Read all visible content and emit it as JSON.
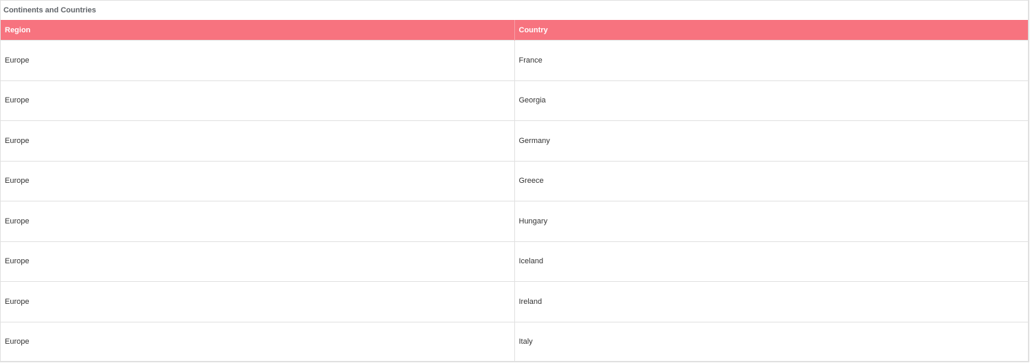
{
  "title": "Continents and Countries",
  "columns": [
    "Region",
    "Country"
  ],
  "rows": [
    [
      "Europe",
      "France"
    ],
    [
      "Europe",
      "Georgia"
    ],
    [
      "Europe",
      "Germany"
    ],
    [
      "Europe",
      "Greece"
    ],
    [
      "Europe",
      "Hungary"
    ],
    [
      "Europe",
      "Iceland"
    ],
    [
      "Europe",
      "Ireland"
    ],
    [
      "Europe",
      "Italy"
    ]
  ],
  "colors": {
    "header_bg": "#f7737f",
    "header_text": "#ffffff",
    "title_text": "#5f6368"
  }
}
